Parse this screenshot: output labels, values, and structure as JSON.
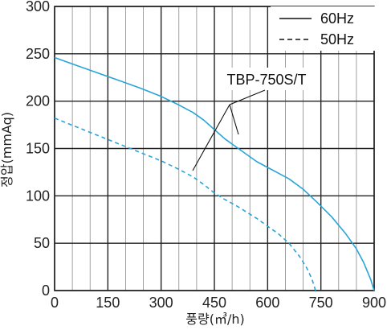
{
  "chart_data": {
    "type": "line",
    "xlabel": "풍량(㎥/h)",
    "ylabel": "정압(mmAq)",
    "xlim": [
      0,
      900
    ],
    "ylim": [
      0,
      300
    ],
    "x_ticks": [
      "0",
      "150",
      "300",
      "450",
      "600",
      "750",
      "900"
    ],
    "y_ticks": [
      "0",
      "50",
      "100",
      "150",
      "200",
      "250",
      "300"
    ],
    "grid": true,
    "legend_position": "top-right",
    "annotation": "TBP-750S/T",
    "colors": {
      "curve": "#29a4d9",
      "grid": "#222222",
      "axis_text": "#222222"
    },
    "series": [
      {
        "name": "60Hz",
        "style": "solid",
        "points": [
          [
            0,
            246
          ],
          [
            60,
            238
          ],
          [
            120,
            230
          ],
          [
            180,
            222
          ],
          [
            240,
            214
          ],
          [
            300,
            205
          ],
          [
            350,
            196
          ],
          [
            390,
            188
          ],
          [
            420,
            180
          ],
          [
            450,
            170
          ],
          [
            480,
            160
          ],
          [
            510,
            152
          ],
          [
            540,
            144
          ],
          [
            570,
            136
          ],
          [
            600,
            130
          ],
          [
            630,
            124
          ],
          [
            660,
            118
          ],
          [
            700,
            107
          ],
          [
            740,
            93
          ],
          [
            780,
            78
          ],
          [
            820,
            60
          ],
          [
            850,
            44
          ],
          [
            870,
            30
          ],
          [
            890,
            12
          ],
          [
            900,
            0
          ]
        ]
      },
      {
        "name": "50Hz",
        "style": "dashed",
        "points": [
          [
            0,
            182
          ],
          [
            60,
            173
          ],
          [
            120,
            164
          ],
          [
            180,
            155
          ],
          [
            240,
            146
          ],
          [
            300,
            137
          ],
          [
            350,
            128
          ],
          [
            390,
            120
          ],
          [
            420,
            112
          ],
          [
            450,
            103
          ],
          [
            480,
            96
          ],
          [
            510,
            90
          ],
          [
            540,
            83
          ],
          [
            570,
            76
          ],
          [
            600,
            68
          ],
          [
            630,
            60
          ],
          [
            660,
            50
          ],
          [
            690,
            36
          ],
          [
            710,
            24
          ],
          [
            725,
            12
          ],
          [
            735,
            0
          ]
        ]
      }
    ]
  }
}
